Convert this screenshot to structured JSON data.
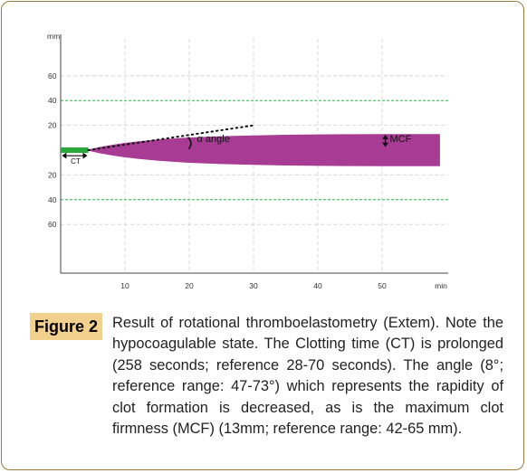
{
  "chart_data": {
    "type": "area",
    "x_unit": "min",
    "y_unit": "mm",
    "x_ticks": [
      10,
      20,
      30,
      40,
      50
    ],
    "y_ticks_upper": [
      60,
      40,
      20
    ],
    "y_ticks_lower": [
      20,
      40,
      60
    ],
    "xlim": [
      0,
      60
    ],
    "ylim": [
      -70,
      70
    ],
    "reference_lines_mm": [
      40,
      -40
    ],
    "reference_line_color": "#2db84a",
    "dashed_grid_mm": [
      60,
      20,
      -20,
      -60
    ],
    "ct_min": 4.3,
    "ct_color": "#2aa83a",
    "trace_color": "#a83c95",
    "amplitude": {
      "x": [
        4.3,
        6,
        8,
        10,
        12,
        15,
        18,
        20,
        25,
        30,
        35,
        40,
        45,
        50,
        55,
        59
      ],
      "y": [
        0.5,
        2.5,
        4.3,
        5.8,
        7.0,
        8.5,
        9.6,
        10.2,
        11.2,
        11.9,
        12.4,
        12.7,
        12.9,
        13.0,
        13.0,
        13.0
      ]
    },
    "alpha_tangent": {
      "x": [
        4.3,
        30
      ],
      "y": [
        0,
        20
      ]
    },
    "annotations": {
      "ct": "CT",
      "alpha": "α angle",
      "mcf": "MCF"
    }
  },
  "caption": {
    "label": "Figure 2",
    "text": "Result of rotational thromboelastometry (Extem). Note the hypocoagulable state. The Clotting time (CT) is prolonged (258 seconds; reference 28-70 seconds). The angle (8°; reference range: 47-73°) which represents the rapidity of clot formation is decreased, as is the maximum clot firmness (MCF) (13mm; reference range: 42-65 mm)."
  },
  "colors": {
    "frame_border": "#9c7a3c",
    "badge_bg": "#f2d08e"
  }
}
